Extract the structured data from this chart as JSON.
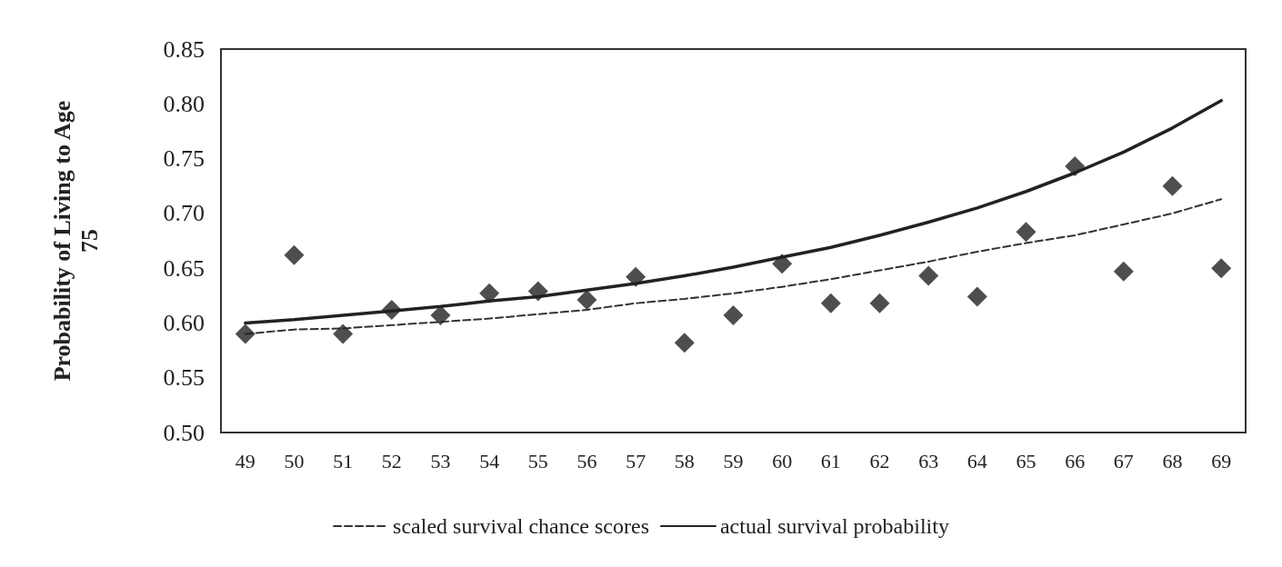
{
  "chart_data": {
    "type": "line",
    "ylabel": "Probability of Living to Age 75",
    "categories": [
      "49",
      "50",
      "51",
      "52",
      "53",
      "54",
      "55",
      "56",
      "57",
      "58",
      "59",
      "60",
      "61",
      "62",
      "63",
      "64",
      "65",
      "66",
      "67",
      "68",
      "69"
    ],
    "series": [
      {
        "type": "scatter",
        "marker": "diamond",
        "color": "#222222",
        "values": [
          0.59,
          0.662,
          0.59,
          0.612,
          0.607,
          0.627,
          0.629,
          0.621,
          0.642,
          0.582,
          0.607,
          0.654,
          0.618,
          0.618,
          0.643,
          0.624,
          0.683,
          0.743,
          0.647,
          0.725,
          0.65
        ]
      },
      {
        "name": "scaled survival chance scores",
        "line_style": "dashed",
        "color": "#333333",
        "values": [
          0.59,
          0.594,
          0.595,
          0.598,
          0.601,
          0.604,
          0.608,
          0.612,
          0.618,
          0.622,
          0.627,
          0.633,
          0.64,
          0.648,
          0.656,
          0.665,
          0.673,
          0.68,
          0.69,
          0.7,
          0.713
        ]
      },
      {
        "name": "actual survival probability",
        "line_style": "solid",
        "color": "#222222",
        "values": [
          0.6,
          0.603,
          0.607,
          0.611,
          0.615,
          0.62,
          0.624,
          0.63,
          0.636,
          0.643,
          0.651,
          0.66,
          0.669,
          0.68,
          0.692,
          0.705,
          0.72,
          0.737,
          0.756,
          0.778,
          0.803
        ]
      }
    ],
    "marker": "none",
    "ylim": [
      0.5,
      0.85
    ],
    "yticks": [
      {
        "value": 0.5,
        "label": "0.50"
      },
      {
        "value": 0.55,
        "label": "0.55"
      },
      {
        "value": 0.6,
        "label": "0.60"
      },
      {
        "value": 0.65,
        "label": "0.65"
      },
      {
        "value": 0.7,
        "label": "0.70"
      },
      {
        "value": 0.75,
        "label": "0.75"
      },
      {
        "value": 0.8,
        "label": "0.80"
      },
      {
        "value": 0.85,
        "label": "0.85"
      }
    ],
    "legend": "bottom"
  }
}
